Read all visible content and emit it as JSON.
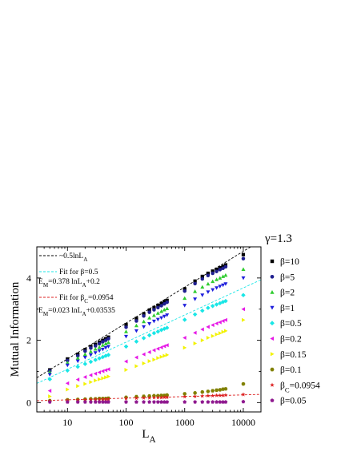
{
  "chart_data": {
    "type": "scatter",
    "xlabel": "L",
    "xlabel_sub": "A",
    "ylabel": "Mutual Information",
    "xscale": "log",
    "xlim": [
      3,
      20000
    ],
    "ylim": [
      -0.3,
      5.0
    ],
    "xticks": [
      10,
      100,
      1000,
      10000
    ],
    "xtick_labels": [
      "10",
      "100",
      "1000",
      "10000"
    ],
    "yticks": [
      0,
      2,
      4
    ],
    "ytick_labels": [
      "0",
      "2",
      "4"
    ],
    "grid": false,
    "legend_position": "right-outside",
    "legend_title": "γ=1.3",
    "x": [
      5,
      10,
      15,
      20,
      25,
      30,
      35,
      40,
      45,
      50,
      100,
      150,
      200,
      250,
      300,
      350,
      400,
      450,
      500,
      1000,
      1500,
      2000,
      2500,
      3000,
      3500,
      4000,
      4500,
      5000,
      10000
    ],
    "series": [
      {
        "name": "β=10",
        "marker": "square",
        "color": "#000000",
        "values": [
          1.05,
          1.4,
          1.55,
          1.7,
          1.8,
          1.87,
          1.94,
          2.0,
          2.05,
          2.1,
          2.5,
          2.7,
          2.85,
          2.97,
          3.05,
          3.12,
          3.18,
          3.24,
          3.28,
          3.65,
          3.9,
          4.05,
          4.15,
          4.22,
          4.28,
          4.33,
          4.37,
          4.42,
          4.75
        ]
      },
      {
        "name": "β=5",
        "marker": "circle",
        "color": "#1f1f8f",
        "values": [
          1.02,
          1.35,
          1.5,
          1.65,
          1.75,
          1.82,
          1.89,
          1.95,
          2.0,
          2.05,
          2.42,
          2.62,
          2.78,
          2.9,
          2.98,
          3.05,
          3.11,
          3.17,
          3.22,
          3.58,
          3.82,
          3.97,
          4.08,
          4.15,
          4.21,
          4.27,
          4.31,
          4.36,
          4.62
        ]
      },
      {
        "name": "β=2",
        "marker": "triangle-up",
        "color": "#2ecc2e",
        "values": [
          0.98,
          1.28,
          1.43,
          1.55,
          1.64,
          1.72,
          1.78,
          1.84,
          1.89,
          1.93,
          2.28,
          2.47,
          2.6,
          2.72,
          2.8,
          2.87,
          2.93,
          2.98,
          3.02,
          3.35,
          3.57,
          3.71,
          3.81,
          3.89,
          3.95,
          4.0,
          4.05,
          4.09,
          4.28
        ]
      },
      {
        "name": "β=1",
        "marker": "triangle-down",
        "color": "#1f1fdc",
        "values": [
          0.9,
          1.2,
          1.33,
          1.45,
          1.53,
          1.6,
          1.66,
          1.71,
          1.76,
          1.8,
          2.12,
          2.3,
          2.43,
          2.53,
          2.61,
          2.67,
          2.72,
          2.77,
          2.81,
          3.12,
          3.32,
          3.45,
          3.55,
          3.62,
          3.68,
          3.73,
          3.77,
          3.81,
          4.0
        ]
      },
      {
        "name": "β=0.5",
        "marker": "diamond",
        "color": "#19e6e6",
        "values": [
          0.75,
          1.03,
          1.15,
          1.24,
          1.31,
          1.37,
          1.42,
          1.46,
          1.5,
          1.53,
          1.8,
          1.96,
          2.07,
          2.16,
          2.23,
          2.28,
          2.33,
          2.37,
          2.4,
          2.66,
          2.83,
          2.95,
          3.04,
          3.1,
          3.15,
          3.19,
          3.23,
          3.26,
          3.45
        ]
      },
      {
        "name": "β=0.2",
        "marker": "triangle-left",
        "color": "#e619e6",
        "values": [
          0.38,
          0.62,
          0.74,
          0.82,
          0.88,
          0.93,
          0.97,
          1.01,
          1.04,
          1.07,
          1.32,
          1.45,
          1.55,
          1.62,
          1.68,
          1.73,
          1.77,
          1.81,
          1.84,
          2.08,
          2.24,
          2.35,
          2.43,
          2.49,
          2.54,
          2.58,
          2.62,
          2.65,
          3.0
        ]
      },
      {
        "name": "β=0.15",
        "marker": "triangle-right",
        "color": "#f2f200",
        "values": [
          0.2,
          0.42,
          0.53,
          0.6,
          0.66,
          0.71,
          0.75,
          0.78,
          0.81,
          0.84,
          1.05,
          1.17,
          1.26,
          1.33,
          1.38,
          1.43,
          1.47,
          1.5,
          1.53,
          1.76,
          1.9,
          2.0,
          2.08,
          2.14,
          2.19,
          2.23,
          2.27,
          2.3,
          2.65
        ]
      },
      {
        "name": "β=0.1",
        "marker": "hexagon",
        "color": "#808000",
        "values": [
          0.06,
          0.09,
          0.1,
          0.11,
          0.12,
          0.12,
          0.13,
          0.13,
          0.13,
          0.14,
          0.17,
          0.19,
          0.2,
          0.21,
          0.22,
          0.22,
          0.23,
          0.23,
          0.24,
          0.28,
          0.31,
          0.34,
          0.36,
          0.38,
          0.4,
          0.41,
          0.43,
          0.44,
          0.6
        ]
      },
      {
        "name": "β",
        "name_sub": "C",
        "name_suffix": "=0.0954",
        "marker": "star",
        "color": "#dc1f1f",
        "values": [
          0.05,
          0.07,
          0.08,
          0.09,
          0.09,
          0.1,
          0.1,
          0.1,
          0.11,
          0.11,
          0.13,
          0.14,
          0.15,
          0.15,
          0.16,
          0.16,
          0.16,
          0.17,
          0.17,
          0.19,
          0.2,
          0.21,
          0.22,
          0.22,
          0.23,
          0.23,
          0.23,
          0.24,
          0.26
        ]
      },
      {
        "name": "β=0.05",
        "marker": "pentagon",
        "color": "#8f198f",
        "values": [
          0.02,
          0.02,
          0.02,
          0.02,
          0.02,
          0.02,
          0.02,
          0.02,
          0.02,
          0.02,
          0.02,
          0.02,
          0.02,
          0.02,
          0.02,
          0.02,
          0.02,
          0.02,
          0.02,
          0.02,
          0.02,
          0.02,
          0.02,
          0.02,
          0.02,
          0.02,
          0.02,
          0.02,
          0.03
        ]
      }
    ],
    "fit_lines": [
      {
        "label": "~0.5lnL",
        "label_sub": "A",
        "color": "#000000",
        "slope": 0.5,
        "intercept": 0.25,
        "ln_base": "e"
      },
      {
        "label": "Fit for β=0.5",
        "color": "#19e6e6",
        "slope": 0.378,
        "intercept": 0.2,
        "ln_base": "e"
      },
      {
        "label": "Fit for β",
        "label_sub": "C",
        "label_suffix": "=0.0954",
        "color": "#dc1f1f",
        "slope": 0.023,
        "intercept": 0.03535,
        "ln_base": "e"
      }
    ],
    "annotations": [
      {
        "pre": "E",
        "pre_sub": "M",
        "text": "=0.378 lnL",
        "text_sub": "A",
        "text_suffix": "+0.2"
      },
      {
        "pre": "E",
        "pre_sub": "M",
        "text": "=0.023 lnL",
        "text_sub": "A",
        "text_suffix": "+0.03535"
      }
    ]
  }
}
